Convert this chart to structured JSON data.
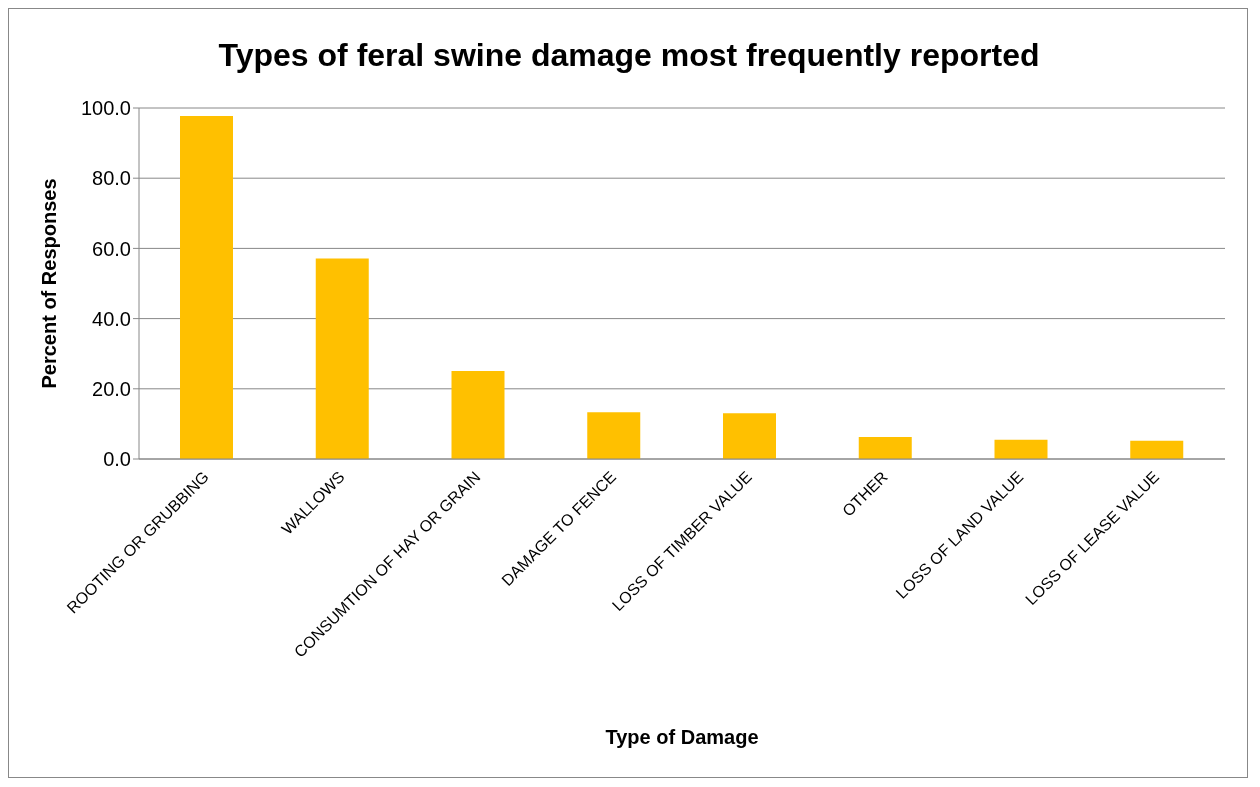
{
  "chart_data": {
    "type": "bar",
    "title": "Types of feral swine damage most frequently reported",
    "xlabel": "Type of Damage",
    "ylabel": "Percent of Responses",
    "categories": [
      "ROOTING OR GRUBBING",
      "WALLOWS",
      "CONSUMTION OF HAY OR GRAIN",
      "DAMAGE TO FENCE",
      "LOSS OF TIMBER VALUE",
      "OTHER",
      "LOSS OF LAND VALUE",
      "LOSS OF LEASE VALUE"
    ],
    "values": [
      97.7,
      57.1,
      25.1,
      13.3,
      13.0,
      6.3,
      5.5,
      5.2
    ],
    "color": "#ffc000",
    "ylim": [
      0,
      100
    ],
    "yticks": [
      {
        "value": 0,
        "label": "0.0"
      },
      {
        "value": 20,
        "label": "20.0"
      },
      {
        "value": 40,
        "label": "40.0"
      },
      {
        "value": 60,
        "label": "60.0"
      },
      {
        "value": 80,
        "label": "80.0"
      },
      {
        "value": 100,
        "label": "100.0"
      }
    ],
    "grid": "y",
    "legend": false
  }
}
